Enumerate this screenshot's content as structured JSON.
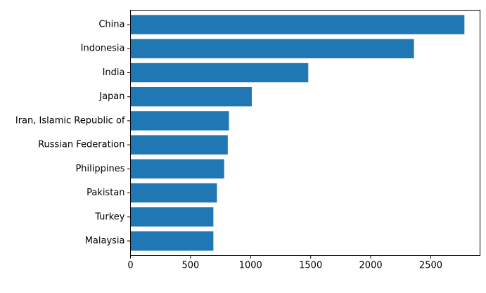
{
  "chart_data": {
    "type": "bar",
    "orientation": "horizontal",
    "categories": [
      "China",
      "Indonesia",
      "India",
      "Japan",
      "Iran, Islamic Republic of",
      "Russian Federation",
      "Philippines",
      "Pakistan",
      "Turkey",
      "Malaysia"
    ],
    "values": [
      2780,
      2360,
      1480,
      1010,
      820,
      810,
      780,
      720,
      690,
      690
    ],
    "title": "",
    "xlabel": "",
    "ylabel": "",
    "xlim": [
      0,
      2910
    ],
    "xticks": [
      0,
      500,
      1000,
      1500,
      2000,
      2500
    ],
    "xtick_labels": [
      "0",
      "500",
      "1000",
      "1500",
      "2000",
      "2500"
    ],
    "grid": false,
    "bar_color": "#1f77b4"
  }
}
